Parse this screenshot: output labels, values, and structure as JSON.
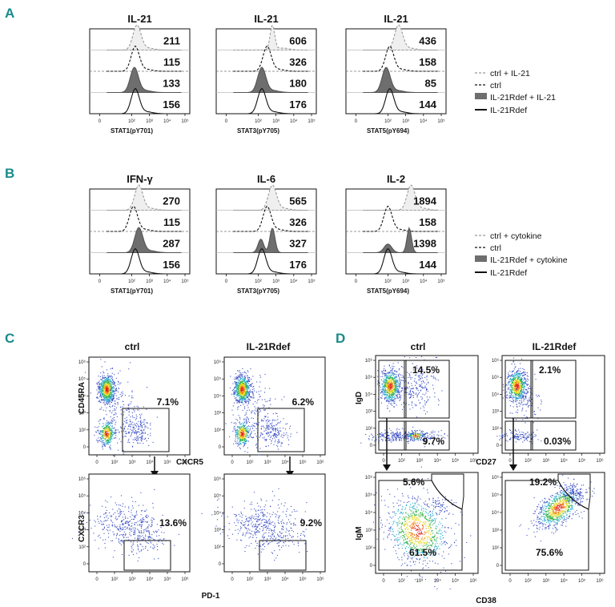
{
  "panels": {
    "A": {
      "letter": "A",
      "hist": [
        {
          "title": "IL-21",
          "xlabel": "STAT1(pY701)",
          "values": [
            "211",
            "115",
            "133",
            "156"
          ],
          "modes": [
            2.3,
            2.2,
            2.15,
            2.2
          ]
        },
        {
          "title": "IL-21",
          "xlabel": "STAT3(pY705)",
          "values": [
            "606",
            "326",
            "180",
            "176"
          ],
          "modes": [
            2.8,
            2.5,
            2.2,
            2.2
          ]
        },
        {
          "title": "IL-21",
          "xlabel": "STAT5(pY694)",
          "values": [
            "436",
            "158",
            "85",
            "144"
          ],
          "modes": [
            2.6,
            2.1,
            1.9,
            2.1
          ]
        }
      ],
      "legend": [
        "ctrl + IL-21",
        "ctrl",
        "IL-21Rdef + IL-21",
        "IL-21Rdef"
      ]
    },
    "B": {
      "letter": "B",
      "hist": [
        {
          "title": "IFN-γ",
          "xlabel": "STAT1(pY701)",
          "values": [
            "270",
            "115",
            "287",
            "156"
          ],
          "modes": [
            2.4,
            2.1,
            2.4,
            2.2
          ]
        },
        {
          "title": "IL-6",
          "xlabel": "STAT3(pY705)",
          "values": [
            "565",
            "326",
            "327",
            "176"
          ],
          "modes": [
            2.8,
            2.5,
            2.6,
            2.2
          ]
        },
        {
          "title": "IL-2",
          "xlabel": "STAT5(pY694)",
          "values": [
            "1894",
            "158",
            "1398",
            "144"
          ],
          "modes": [
            3.3,
            2.0,
            3.2,
            2.0
          ]
        }
      ],
      "legend": [
        "ctrl + cytokine",
        "ctrl",
        "IL-21Rdef + cytokine",
        "IL-21Rdef"
      ]
    },
    "C": {
      "letter": "C",
      "col_titles": [
        "ctrl",
        "IL-21Rdef"
      ],
      "top_pcts": [
        "7.1%",
        "6.2%"
      ],
      "bottom_pcts": [
        "13.6%",
        "9.2%"
      ],
      "top_ylabel": "CD45RA",
      "top_xlabel": "CXCR5",
      "bottom_ylabel": "CXCR3",
      "bottom_xlabel": "PD-1"
    },
    "D": {
      "letter": "D",
      "col_titles": [
        "ctrl",
        "IL-21Rdef"
      ],
      "top_upper_pcts": [
        "14.5%",
        "2.1%"
      ],
      "top_lower_pcts": [
        "9.7%",
        "0.03%"
      ],
      "bottom_upper_pcts": [
        "5.6%",
        "19.2%"
      ],
      "bottom_lower_pcts": [
        "61.5%",
        "75.6%"
      ],
      "top_ylabel": "IgD",
      "top_xlabel": "CD27",
      "bottom_ylabel": "IgM",
      "bottom_xlabel": "CD38"
    }
  },
  "hist_ticks": [
    "0",
    "10²",
    "10³",
    "10⁴",
    "10⁵"
  ],
  "flow_ticks": [
    "0",
    "10²",
    "10³",
    "10⁴",
    "10⁵",
    "10⁶"
  ],
  "flow_yticks": [
    "0",
    "10²",
    "10³",
    "10⁴",
    "10⁵",
    "10⁶"
  ],
  "chart_data": [
    {
      "type": "histogram",
      "panel": "A",
      "series": [
        "ctrl + IL-21",
        "ctrl",
        "IL-21Rdef + IL-21",
        "IL-21Rdef"
      ],
      "plots": [
        {
          "title": "IL-21",
          "xlabel": "STAT1(pY701)",
          "mfi": [
            211,
            115,
            133,
            156
          ]
        },
        {
          "title": "IL-21",
          "xlabel": "STAT3(pY705)",
          "mfi": [
            606,
            326,
            180,
            176
          ]
        },
        {
          "title": "IL-21",
          "xlabel": "STAT5(pY694)",
          "mfi": [
            436,
            158,
            85,
            144
          ]
        }
      ]
    },
    {
      "type": "histogram",
      "panel": "B",
      "series": [
        "ctrl + cytokine",
        "ctrl",
        "IL-21Rdef + cytokine",
        "IL-21Rdef"
      ],
      "plots": [
        {
          "title": "IFN-γ",
          "xlabel": "STAT1(pY701)",
          "mfi": [
            270,
            115,
            287,
            156
          ]
        },
        {
          "title": "IL-6",
          "xlabel": "STAT3(pY705)",
          "mfi": [
            565,
            326,
            327,
            176
          ]
        },
        {
          "title": "IL-2",
          "xlabel": "STAT5(pY694)",
          "mfi": [
            1894,
            158,
            1398,
            144
          ]
        }
      ]
    },
    {
      "type": "scatter",
      "panel": "C",
      "groups": [
        "ctrl",
        "IL-21Rdef"
      ],
      "gates": {
        "CD45RA- CXCR5+": [
          7.1,
          6.2
        ],
        "CXCR3 PD-1 gate": [
          13.6,
          9.2
        ]
      }
    },
    {
      "type": "scatter",
      "panel": "D",
      "groups": [
        "ctrl",
        "IL-21Rdef"
      ],
      "gates": {
        "IgD+ CD27+": [
          14.5,
          2.1
        ],
        "IgD- CD27+": [
          9.7,
          0.03
        ],
        "IgM+ CD38+": [
          5.6,
          19.2
        ],
        "IgM CD38 main": [
          61.5,
          75.6
        ]
      }
    }
  ]
}
